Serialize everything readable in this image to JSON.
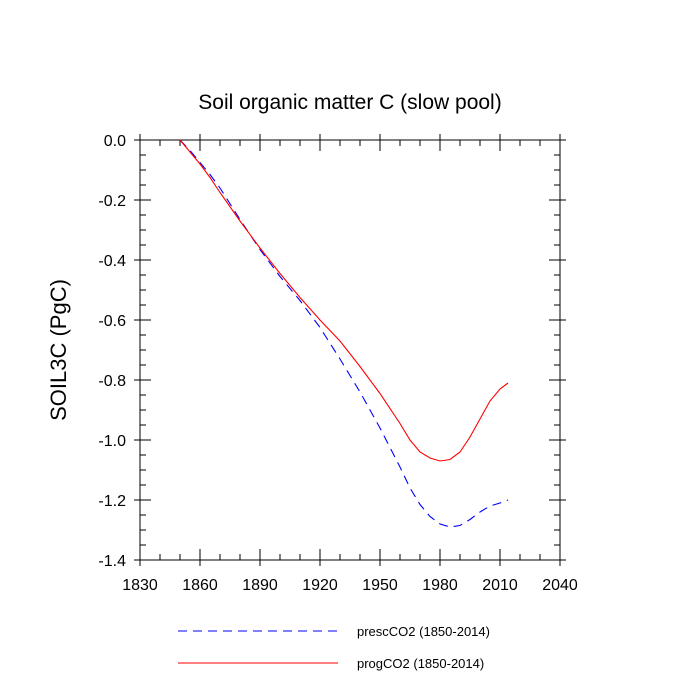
{
  "chart_data": {
    "type": "line",
    "title": "Soil organic matter C (slow pool)",
    "xlabel": "",
    "ylabel": "SOIL3C  (PgC)",
    "xlim": [
      1830,
      2040
    ],
    "ylim": [
      -1.4,
      0.0
    ],
    "xticks": [
      1830,
      1860,
      1890,
      1920,
      1950,
      1980,
      2010,
      2040
    ],
    "xtick_labels": [
      "1830",
      "1860",
      "1890",
      "1920",
      "1950",
      "1980",
      "2010",
      "2040"
    ],
    "yticks": [
      0.0,
      -0.2,
      -0.4,
      -0.6,
      -0.8,
      -1.0,
      -1.2,
      -1.4
    ],
    "ytick_labels": [
      "0.0",
      "-0.2",
      "-0.4",
      "-0.6",
      "-0.8",
      "-1.0",
      "-1.2",
      "-1.4"
    ],
    "legend_position": "bottom",
    "series": [
      {
        "name": "prescCO2 (1850-2014)",
        "color": "#0000ff",
        "style": "dashed",
        "x": [
          1850,
          1855,
          1860,
          1865,
          1870,
          1880,
          1890,
          1900,
          1910,
          1920,
          1930,
          1940,
          1950,
          1960,
          1965,
          1970,
          1975,
          1980,
          1985,
          1990,
          1995,
          2000,
          2005,
          2010,
          2014
        ],
        "y": [
          0.0,
          -0.035,
          -0.075,
          -0.115,
          -0.16,
          -0.265,
          -0.365,
          -0.455,
          -0.535,
          -0.625,
          -0.73,
          -0.84,
          -0.96,
          -1.09,
          -1.16,
          -1.215,
          -1.255,
          -1.28,
          -1.29,
          -1.285,
          -1.265,
          -1.24,
          -1.22,
          -1.21,
          -1.2
        ]
      },
      {
        "name": "progCO2 (1850-2014)",
        "color": "#ff0000",
        "style": "solid",
        "x": [
          1850,
          1855,
          1860,
          1865,
          1870,
          1880,
          1890,
          1900,
          1910,
          1920,
          1930,
          1940,
          1950,
          1960,
          1965,
          1970,
          1975,
          1980,
          1985,
          1990,
          1995,
          2000,
          2005,
          2010,
          2014
        ],
        "y": [
          0.0,
          -0.04,
          -0.08,
          -0.125,
          -0.175,
          -0.27,
          -0.36,
          -0.445,
          -0.525,
          -0.6,
          -0.67,
          -0.755,
          -0.845,
          -0.945,
          -1.0,
          -1.04,
          -1.06,
          -1.07,
          -1.065,
          -1.04,
          -0.99,
          -0.93,
          -0.87,
          -0.83,
          -0.81
        ]
      }
    ]
  }
}
